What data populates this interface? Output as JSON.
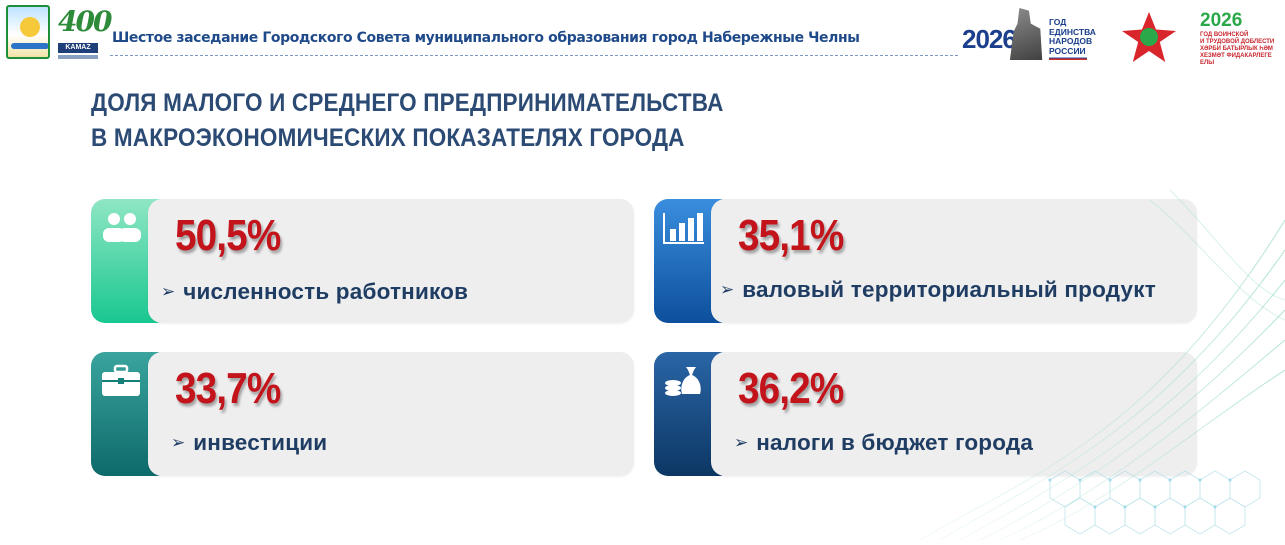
{
  "header": {
    "title": "Шестое заседание Городского Совета муниципального образования город Набережные Челны",
    "logo_400_number": "400",
    "logo_400_brand": "KAMAZ",
    "badge_unity": {
      "year": "2026",
      "text": "ГОД\nЕДИНСТВА\nНАРОДОВ\nРОССИИ"
    },
    "badge_valor": {
      "year": "2026",
      "text": "ГОД ВОИНСКОЙ\nИ ТРУДОВОЙ ДОБЛЕСТИ\nХӘРБИ БАТЫРЛЫК ҺӘМ\nХЕЗМӘТ ФИДАКАРЛЕГЕ ЕЛЫ"
    }
  },
  "page_title": "ДОЛЯ МАЛОГО И СРЕДНЕГО ПРЕДПРИНИМАТЕЛЬСТВА\nВ МАКРОЭКОНОМИЧЕСКИХ ПОКАЗАТЕЛЯХ ГОРОДА",
  "cards": [
    {
      "value": "50,5%",
      "label": "численность работников",
      "icon": "people-icon",
      "accent": "#19c790"
    },
    {
      "value": "35,1%",
      "label": "валовый территориальный продукт",
      "icon": "bar-chart-icon",
      "accent": "#1565b8"
    },
    {
      "value": "33,7%",
      "label": "инвестиции",
      "icon": "briefcase-icon",
      "accent": "#13807c"
    },
    {
      "value": "36,2%",
      "label": "налоги в бюджет города",
      "icon": "money-bag-icon",
      "accent": "#134a82"
    }
  ],
  "colors": {
    "title": "#2b4a74",
    "value": "#c3141c",
    "label": "#1f3d63",
    "header_title": "#1f4a8a"
  }
}
